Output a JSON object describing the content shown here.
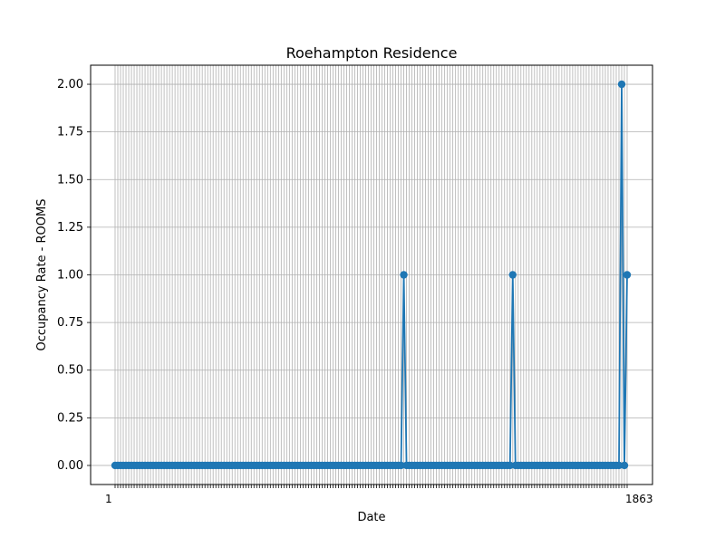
{
  "chart_data": {
    "type": "line",
    "title": "Roehampton Residence",
    "xlabel": "Date",
    "ylabel": "Occupancy Rate - ROOMS",
    "ylim": [
      -0.1,
      2.1
    ],
    "yticks": [
      0.0,
      0.25,
      0.5,
      0.75,
      1.0,
      1.25,
      1.5,
      1.75,
      2.0
    ],
    "ytick_labels": [
      "0.00",
      "0.25",
      "0.50",
      "0.75",
      "1.00",
      "1.25",
      "1.50",
      "1.75",
      "2.00"
    ],
    "grid": true,
    "colors": {
      "series": "#1f77b4",
      "grid": "#b0b0b0",
      "axes": "#000000"
    },
    "x": [
      0,
      1,
      2,
      3,
      4,
      5,
      6,
      7,
      8,
      9,
      10,
      11,
      12,
      13,
      14,
      15,
      16,
      17,
      18,
      19,
      20,
      21,
      22,
      23,
      24,
      25,
      26,
      27,
      28,
      29,
      30,
      31,
      32,
      33,
      34,
      35,
      36,
      37,
      38,
      39,
      40,
      41,
      42,
      43,
      44,
      45,
      46,
      47,
      48,
      49,
      50,
      51,
      52,
      53,
      54,
      55,
      56,
      57,
      58,
      59,
      60,
      61,
      62,
      63,
      64,
      65,
      66,
      67,
      68,
      69,
      70,
      71,
      72,
      73,
      74,
      75,
      76,
      77,
      78,
      79,
      80,
      81,
      82,
      83,
      84,
      85,
      86,
      87,
      88,
      89,
      90,
      91,
      92,
      93,
      94,
      95,
      96,
      97,
      98,
      99,
      100,
      101,
      102,
      103,
      104,
      105,
      106,
      107,
      108,
      109,
      110,
      111,
      112,
      113,
      114,
      115,
      116,
      117,
      118,
      119,
      120,
      121,
      122,
      123,
      124,
      125,
      126,
      127,
      128,
      129,
      130,
      131,
      132,
      133,
      134,
      135,
      136,
      137,
      138,
      139,
      140,
      141,
      142,
      143,
      144,
      145,
      146,
      147,
      148,
      149,
      150,
      151,
      152,
      153,
      154,
      155,
      156,
      157,
      158,
      159,
      160,
      161,
      162,
      163,
      164,
      165,
      166,
      167,
      168,
      169,
      170,
      171,
      172,
      173,
      174,
      175,
      176,
      177,
      178,
      179,
      180,
      181,
      182,
      183,
      184,
      185,
      186,
      187,
      188
    ],
    "series": [
      {
        "values": [
          0,
          0,
          0,
          0,
          0,
          0,
          0,
          0,
          0,
          0,
          0,
          0,
          0,
          0,
          0,
          0,
          0,
          0,
          0,
          0,
          0,
          0,
          0,
          0,
          0,
          0,
          0,
          0,
          0,
          0,
          0,
          0,
          0,
          0,
          0,
          0,
          0,
          0,
          0,
          0,
          0,
          0,
          0,
          0,
          0,
          0,
          0,
          0,
          0,
          0,
          0,
          0,
          0,
          0,
          0,
          0,
          0,
          0,
          0,
          0,
          0,
          0,
          0,
          0,
          0,
          0,
          0,
          0,
          0,
          0,
          0,
          0,
          0,
          0,
          0,
          0,
          0,
          0,
          0,
          0,
          0,
          0,
          0,
          0,
          0,
          0,
          0,
          0,
          0,
          0,
          0,
          0,
          0,
          0,
          0,
          0,
          0,
          0,
          0,
          0,
          0,
          0,
          0,
          0,
          0,
          0,
          1,
          0,
          0,
          0,
          0,
          0,
          0,
          0,
          0,
          0,
          0,
          0,
          0,
          0,
          0,
          0,
          0,
          0,
          0,
          0,
          0,
          0,
          0,
          0,
          0,
          0,
          0,
          0,
          0,
          0,
          0,
          0,
          0,
          0,
          0,
          0,
          0,
          0,
          0,
          0,
          1,
          0,
          0,
          0,
          0,
          0,
          0,
          0,
          0,
          0,
          0,
          0,
          0,
          0,
          0,
          0,
          0,
          0,
          0,
          0,
          0,
          0,
          0,
          0,
          0,
          0,
          0,
          0,
          0,
          0,
          0,
          0,
          0,
          0,
          0,
          0,
          0,
          0,
          0,
          0,
          2,
          0,
          1
        ]
      }
    ],
    "xtick_labels_first": "1",
    "xtick_labels_last": "1863"
  }
}
